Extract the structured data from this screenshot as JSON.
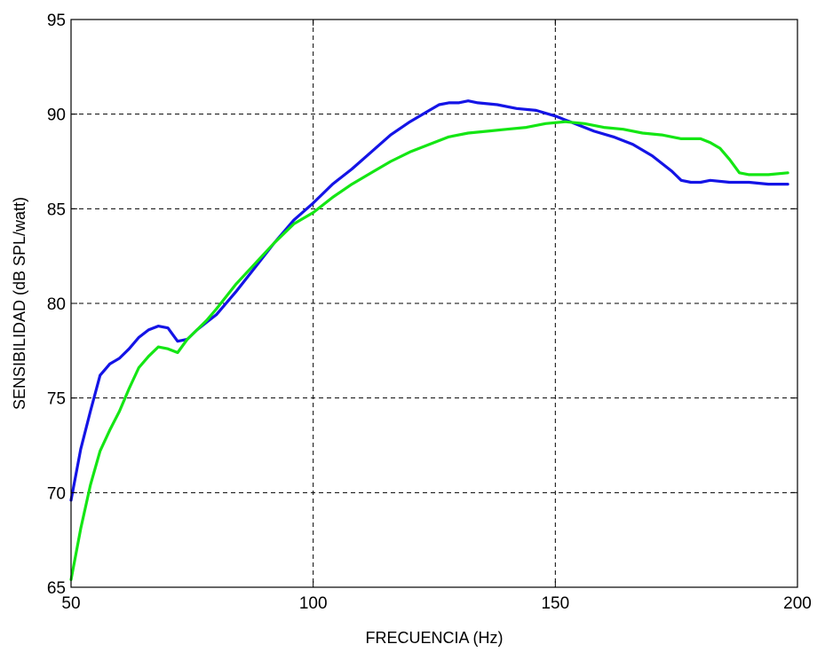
{
  "chart_data": {
    "type": "line",
    "title": "",
    "xlabel": "FRECUENCIA (Hz)",
    "ylabel": "SENSIBILIDAD (dB SPL/watt)",
    "xlim": [
      50,
      200
    ],
    "ylim": [
      65,
      95
    ],
    "xticks": [
      50,
      100,
      150,
      200
    ],
    "yticks": [
      65,
      70,
      75,
      80,
      85,
      90,
      95
    ],
    "xtick_labels": [
      "50",
      "100",
      "150",
      "200"
    ],
    "ytick_labels": [
      "65",
      "70",
      "75",
      "80",
      "85",
      "90",
      "95"
    ],
    "grid": true,
    "legend": "none",
    "series": [
      {
        "color": "#1414e6",
        "x": [
          50,
          52,
          54,
          56,
          57,
          58,
          60,
          62,
          64,
          66,
          68,
          70,
          72,
          74,
          76,
          78,
          80,
          84,
          88,
          92,
          96,
          100,
          104,
          108,
          112,
          116,
          120,
          124,
          126,
          128,
          130,
          132,
          134,
          138,
          142,
          146,
          150,
          154,
          158,
          162,
          166,
          170,
          174,
          176,
          178,
          180,
          182,
          186,
          190,
          194,
          198
        ],
        "y": [
          69.6,
          72.3,
          74.3,
          76.2,
          76.5,
          76.8,
          77.1,
          77.6,
          78.2,
          78.6,
          78.8,
          78.7,
          78.0,
          78.1,
          78.6,
          79.0,
          79.4,
          80.6,
          81.9,
          83.2,
          84.4,
          85.3,
          86.3,
          87.1,
          88.0,
          88.9,
          89.6,
          90.2,
          90.5,
          90.6,
          90.6,
          90.7,
          90.6,
          90.5,
          90.3,
          90.2,
          89.9,
          89.5,
          89.1,
          88.8,
          88.4,
          87.8,
          87.0,
          86.5,
          86.4,
          86.4,
          86.5,
          86.4,
          86.4,
          86.3,
          86.3
        ]
      },
      {
        "color": "#14e614",
        "x": [
          50,
          52,
          54,
          56,
          58,
          60,
          62,
          64,
          66,
          68,
          70,
          72,
          74,
          76,
          78,
          80,
          84,
          88,
          92,
          96,
          100,
          104,
          108,
          112,
          116,
          120,
          124,
          128,
          132,
          136,
          140,
          144,
          148,
          152,
          156,
          160,
          164,
          168,
          172,
          176,
          180,
          182,
          184,
          186,
          188,
          190,
          194,
          198
        ],
        "y": [
          65.4,
          68.1,
          70.4,
          72.2,
          73.3,
          74.3,
          75.5,
          76.6,
          77.2,
          77.7,
          77.6,
          77.4,
          78.1,
          78.6,
          79.1,
          79.7,
          81.0,
          82.1,
          83.2,
          84.2,
          84.8,
          85.6,
          86.3,
          86.9,
          87.5,
          88.0,
          88.4,
          88.8,
          89.0,
          89.1,
          89.2,
          89.3,
          89.5,
          89.6,
          89.5,
          89.3,
          89.2,
          89.0,
          88.9,
          88.7,
          88.7,
          88.5,
          88.2,
          87.6,
          86.9,
          86.8,
          86.8,
          86.9
        ]
      }
    ]
  }
}
